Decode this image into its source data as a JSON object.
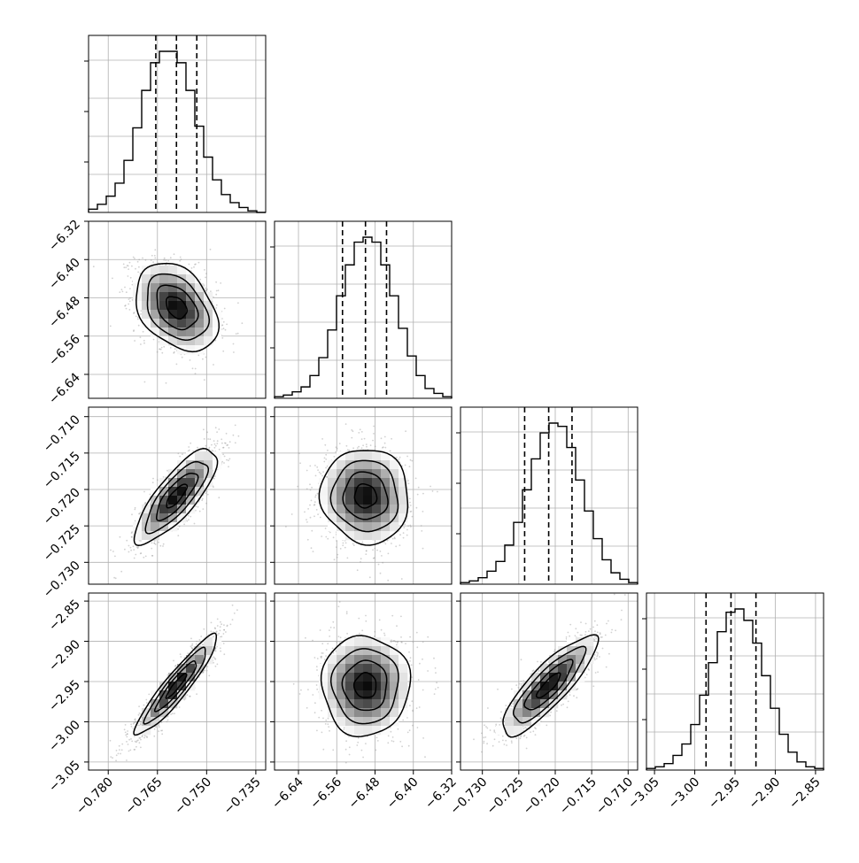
{
  "chart_data": {
    "type": "corner",
    "params": [
      {
        "range": [
          -0.786,
          -0.732
        ],
        "ticks": [
          -0.78,
          -0.765,
          -0.75,
          -0.735
        ],
        "tick_labels": [
          "−0.780",
          "−0.765",
          "−0.750",
          "−0.735"
        ],
        "quantiles": [
          -0.7655,
          -0.7592,
          -0.753
        ],
        "hist": [
          2,
          5,
          10,
          18,
          32,
          52,
          75,
          92,
          99,
          99,
          92,
          75,
          53,
          34,
          20,
          11,
          6,
          3,
          1,
          0
        ]
      },
      {
        "range": [
          -6.69,
          -6.32
        ],
        "ticks": [
          -6.64,
          -6.56,
          -6.48,
          -6.4,
          -6.32
        ],
        "tick_labels": [
          "−6.64",
          "−6.56",
          "−6.48",
          "−6.40",
          "−6.32"
        ],
        "quantiles": [
          -6.548,
          -6.5,
          -6.456
        ],
        "hist": [
          1,
          2,
          4,
          7,
          14,
          25,
          42,
          63,
          82,
          96,
          99,
          96,
          82,
          63,
          43,
          26,
          14,
          6,
          3,
          1
        ]
      },
      {
        "range": [
          -0.733,
          -0.7087
        ],
        "ticks": [
          -0.73,
          -0.725,
          -0.72,
          -0.715,
          -0.71
        ],
        "tick_labels": [
          "−0.730",
          "−0.725",
          "−0.720",
          "−0.715",
          "−0.710"
        ],
        "quantiles": [
          -0.7242,
          -0.7209,
          -0.7177
        ],
        "hist": [
          1,
          2,
          4,
          8,
          14,
          24,
          38,
          58,
          77,
          93,
          99,
          97,
          84,
          64,
          45,
          28,
          15,
          7,
          3,
          1
        ]
      },
      {
        "range": [
          -3.06,
          -2.84
        ],
        "ticks": [
          -3.05,
          -3.0,
          -2.95,
          -2.9,
          -2.85
        ],
        "tick_labels": [
          "−3.05",
          "−3.00",
          "−2.95",
          "−2.90",
          "−2.85"
        ],
        "quantiles": [
          -2.986,
          -2.955,
          -2.924
        ],
        "hist": [
          1,
          2,
          4,
          9,
          16,
          28,
          46,
          66,
          85,
          97,
          99,
          92,
          78,
          58,
          38,
          22,
          11,
          5,
          2,
          1
        ]
      }
    ],
    "pairs": [
      {
        "row": 1,
        "col": 0,
        "rho": -0.35
      },
      {
        "row": 2,
        "col": 0,
        "rho": 0.8
      },
      {
        "row": 2,
        "col": 1,
        "rho": -0.05
      },
      {
        "row": 3,
        "col": 0,
        "rho": 0.93
      },
      {
        "row": 3,
        "col": 1,
        "rho": 0.0
      },
      {
        "row": 3,
        "col": 2,
        "rho": 0.85
      }
    ],
    "grid": true,
    "contour_levels_sigma": [
      0.5,
      1.0,
      1.5,
      2.0
    ],
    "colors": {
      "line": "#000000",
      "grid": "#b0b0b0",
      "points": "#9a9a9a"
    }
  }
}
